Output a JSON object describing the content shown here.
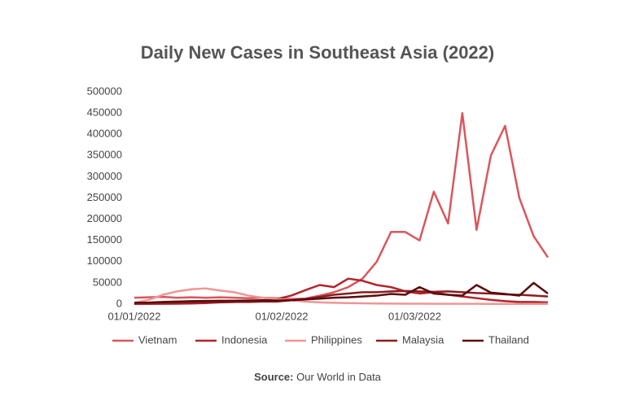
{
  "chart_data": {
    "type": "line",
    "title": "Daily New Cases in Southeast Asia (2022)",
    "source_label": "Source:",
    "source_text": "Our World in Data",
    "x": [
      "01/01/2022",
      "04/01/2022",
      "07/01/2022",
      "10/01/2022",
      "13/01/2022",
      "16/01/2022",
      "19/01/2022",
      "22/01/2022",
      "25/01/2022",
      "28/01/2022",
      "31/01/2022",
      "03/02/2022",
      "06/02/2022",
      "09/02/2022",
      "12/02/2022",
      "15/02/2022",
      "18/02/2022",
      "21/02/2022",
      "24/02/2022",
      "27/02/2022",
      "02/03/2022",
      "05/03/2022",
      "08/03/2022",
      "11/03/2022",
      "14/03/2022",
      "17/03/2022",
      "20/03/2022",
      "23/03/2022",
      "26/03/2022",
      "29/03/2022"
    ],
    "series": [
      {
        "name": "Vietnam",
        "color": "#d9575c",
        "values": [
          15000,
          16000,
          17000,
          15000,
          16000,
          15000,
          16000,
          15000,
          14000,
          15000,
          14000,
          12000,
          13000,
          20000,
          28000,
          40000,
          60000,
          100000,
          170000,
          170000,
          150000,
          265000,
          190000,
          450000,
          175000,
          350000,
          420000,
          250000,
          160000,
          110000
        ]
      },
      {
        "name": "Indonesia",
        "color": "#b3242b",
        "values": [
          300,
          500,
          800,
          1000,
          1500,
          2500,
          4000,
          5000,
          7000,
          9000,
          12000,
          20000,
          33000,
          45000,
          40000,
          60000,
          55000,
          45000,
          40000,
          30000,
          25000,
          28000,
          22000,
          18000,
          14000,
          10000,
          7000,
          5000,
          5000,
          4000
        ]
      },
      {
        "name": "Philippines",
        "color": "#f09595",
        "values": [
          3000,
          10000,
          22000,
          30000,
          35000,
          37000,
          32000,
          28000,
          20000,
          15000,
          12000,
          9000,
          6000,
          4000,
          3000,
          2500,
          2000,
          1500,
          1200,
          1000,
          900,
          800,
          700,
          600,
          600,
          500,
          500,
          500,
          500,
          500
        ]
      },
      {
        "name": "Malaysia",
        "color": "#8c1c1f",
        "values": [
          3000,
          3000,
          3500,
          3500,
          4000,
          4000,
          4500,
          5000,
          5000,
          6000,
          6000,
          9000,
          12000,
          17000,
          22000,
          25000,
          28000,
          28000,
          30000,
          31000,
          30000,
          29000,
          30000,
          28000,
          26000,
          25000,
          23000,
          22000,
          20000,
          18000
        ]
      },
      {
        "name": "Thailand",
        "color": "#5a0b0d",
        "values": [
          3000,
          3500,
          5000,
          6000,
          7000,
          7500,
          8000,
          8000,
          8500,
          9000,
          8500,
          9000,
          11000,
          13000,
          15000,
          16000,
          18000,
          20000,
          24000,
          22000,
          40000,
          25000,
          22000,
          20000,
          45000,
          27000,
          24000,
          20000,
          50000,
          25000
        ]
      }
    ],
    "xlim": [
      "01/01/2022",
      "29/03/2022"
    ],
    "xticks": [
      "01/01/2022",
      "01/02/2022",
      "01/03/2022"
    ],
    "ylim": [
      0,
      500000
    ],
    "yticks": [
      0,
      50000,
      100000,
      150000,
      200000,
      250000,
      300000,
      350000,
      400000,
      450000,
      500000
    ],
    "grid": false,
    "legend": "bottom"
  }
}
